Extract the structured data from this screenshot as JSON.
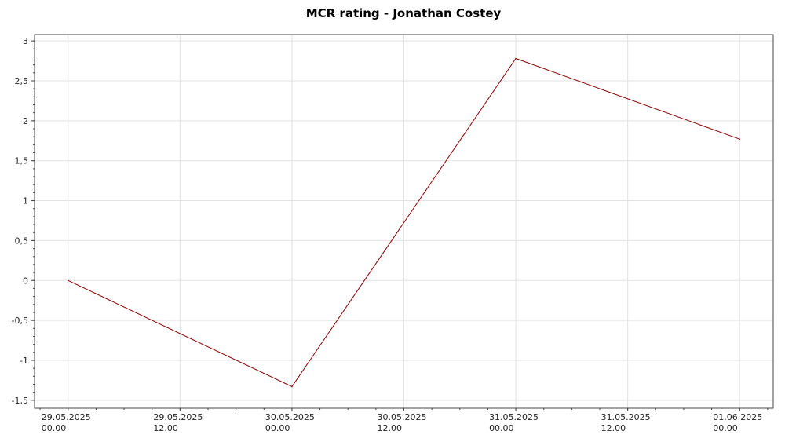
{
  "chart_data": {
    "type": "line",
    "title": "MCR rating - Jonathan Costey",
    "xlabel": "",
    "ylabel": "",
    "ylim": [
      -1.6,
      3.08
    ],
    "xlim": [
      -0.15,
      3.15
    ],
    "grid": true,
    "x_ticks": [
      {
        "value": 0.0,
        "label": [
          "29.05.2025",
          "00.00"
        ]
      },
      {
        "value": 0.5,
        "label": [
          "29.05.2025",
          "12.00"
        ]
      },
      {
        "value": 1.0,
        "label": [
          "30.05.2025",
          "00.00"
        ]
      },
      {
        "value": 1.5,
        "label": [
          "30.05.2025",
          "12.00"
        ]
      },
      {
        "value": 2.0,
        "label": [
          "31.05.2025",
          "00.00"
        ]
      },
      {
        "value": 2.5,
        "label": [
          "31.05.2025",
          "12.00"
        ]
      },
      {
        "value": 3.0,
        "label": [
          "01.06.2025",
          "00.00"
        ]
      }
    ],
    "y_ticks": [
      {
        "value": 3,
        "label": "3"
      },
      {
        "value": 2.5,
        "label": "2,5"
      },
      {
        "value": 2,
        "label": "2"
      },
      {
        "value": 1.5,
        "label": "1,5"
      },
      {
        "value": 1,
        "label": "1"
      },
      {
        "value": 0.5,
        "label": "0,5"
      },
      {
        "value": 0,
        "label": "0"
      },
      {
        "value": -0.5,
        "label": "-0,5"
      },
      {
        "value": -1,
        "label": "-1"
      },
      {
        "value": -1.5,
        "label": "-1,5"
      }
    ],
    "series": [
      {
        "color": "#8b0000",
        "x": [
          0,
          1,
          2,
          3
        ],
        "values": [
          0,
          -1.33,
          2.78,
          1.77
        ]
      }
    ]
  }
}
